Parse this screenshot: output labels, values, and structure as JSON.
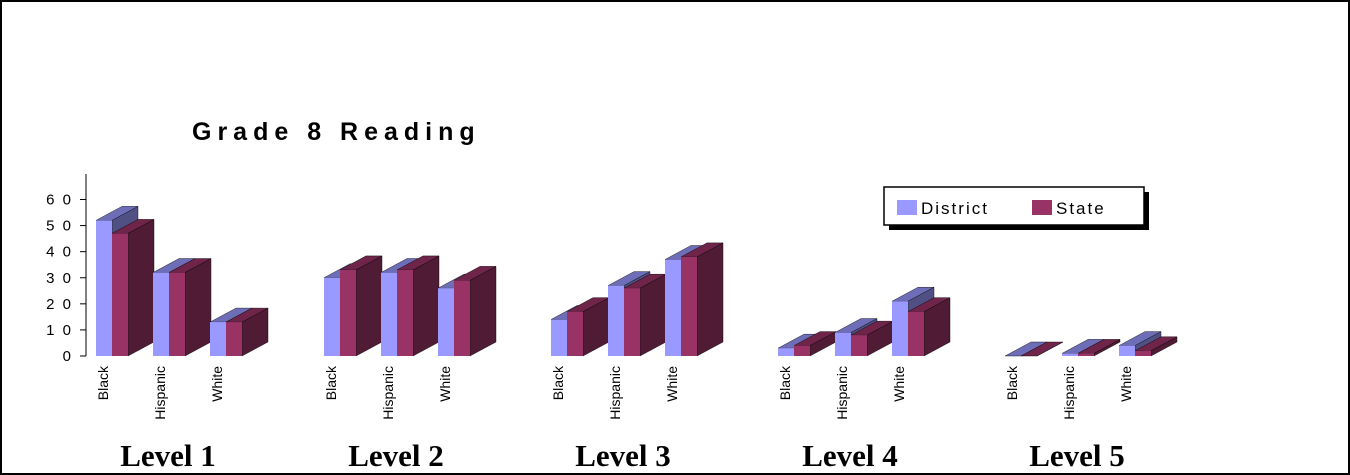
{
  "chart_data": {
    "type": "bar",
    "title": "Grade 8 Reading",
    "groups": [
      {
        "label": "Level 1",
        "categories": [
          "Black",
          "Hispanic",
          "White"
        ]
      },
      {
        "label": "Level 2",
        "categories": [
          "Black",
          "Hispanic",
          "White"
        ]
      },
      {
        "label": "Level 3",
        "categories": [
          "Black",
          "Hispanic",
          "White"
        ]
      },
      {
        "label": "Level 4",
        "categories": [
          "Black",
          "Hispanic",
          "White"
        ]
      },
      {
        "label": "Level 5",
        "categories": [
          "Black",
          "Hispanic",
          "White"
        ]
      }
    ],
    "series": [
      {
        "name": "District",
        "color": "#9999ff",
        "values": [
          52,
          32,
          13,
          30,
          32,
          26,
          14,
          27,
          37,
          3,
          9,
          21,
          0,
          1,
          4
        ]
      },
      {
        "name": "State",
        "color": "#993366",
        "values": [
          47,
          32,
          13,
          33,
          33,
          29,
          17,
          26,
          38,
          4,
          8,
          17,
          0,
          1,
          2
        ]
      }
    ],
    "yticks": [
      0,
      10,
      20,
      30,
      40,
      50,
      60
    ],
    "ylim": [
      0,
      60
    ],
    "legend_position": "right",
    "three_d": true,
    "grid": false
  }
}
